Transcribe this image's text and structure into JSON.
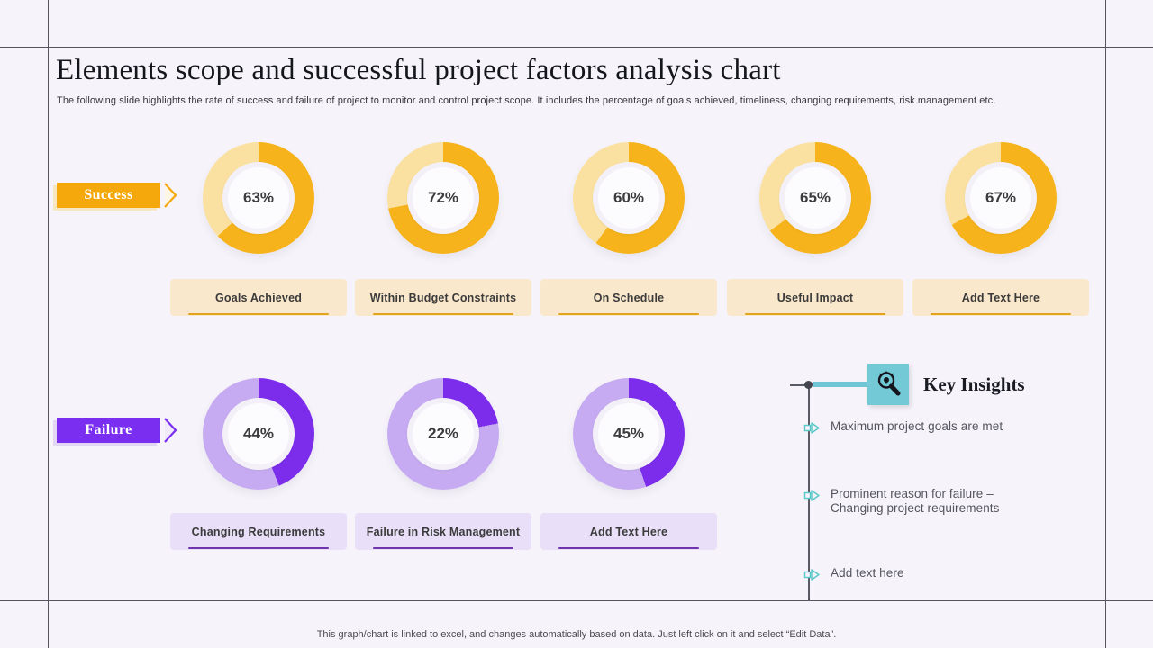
{
  "slide": {
    "title": "Elements scope and successful project factors analysis chart",
    "subtitle": "The following slide highlights the rate of success and failure of project to monitor and control project scope. It includes the percentage of goals achieved, timeliness,  changing requirements, risk management etc.",
    "footer": "This graph/chart is linked to excel, and changes automatically based on data. Just left click on it and select “Edit Data”."
  },
  "groups": {
    "success": {
      "tag_label": "Success"
    },
    "failure": {
      "tag_label": "Failure"
    }
  },
  "key_insights": {
    "title": "Key Insights",
    "icon": "magnifier-bulb-icon",
    "bullets": [
      "Maximum project goals are met",
      "Prominent reason for failure – Changing project requirements",
      "Add text here"
    ]
  },
  "colors": {
    "success_dark": "#F6B31C",
    "success_light": "#FBE1A1",
    "success_tag": "#F5A80C",
    "success_label_bg": "#FAE8CC",
    "success_underline": "#E2A41E",
    "failure_dark": "#7C2DEB",
    "failure_light": "#C7ABF2",
    "failure_tag": "#7A2FF0",
    "failure_label_bg": "#E9DFF8",
    "failure_underline": "#6F35AE",
    "insight_teal": "#6FC6D4",
    "insight_icon_bg": "#74C9D6",
    "marker_teal": "#57C7C9"
  },
  "chart_data": [
    {
      "type": "pie",
      "variant": "donut",
      "group": "Success",
      "unit": "%",
      "categories": [
        "Goals Achieved",
        "Within Budget Constraints",
        "On Schedule",
        "Useful Impact",
        "Add Text Here"
      ],
      "values": [
        63,
        72,
        60,
        65,
        67
      ],
      "legend_position": "none",
      "start_angle_deg": 0,
      "direction": "clockwise"
    },
    {
      "type": "pie",
      "variant": "donut",
      "group": "Failure",
      "unit": "%",
      "categories": [
        "Changing Requirements",
        "Failure in Risk Management",
        "Add Text Here"
      ],
      "values": [
        44,
        22,
        45
      ],
      "legend_position": "none",
      "start_angle_deg": 0,
      "direction": "clockwise"
    }
  ]
}
